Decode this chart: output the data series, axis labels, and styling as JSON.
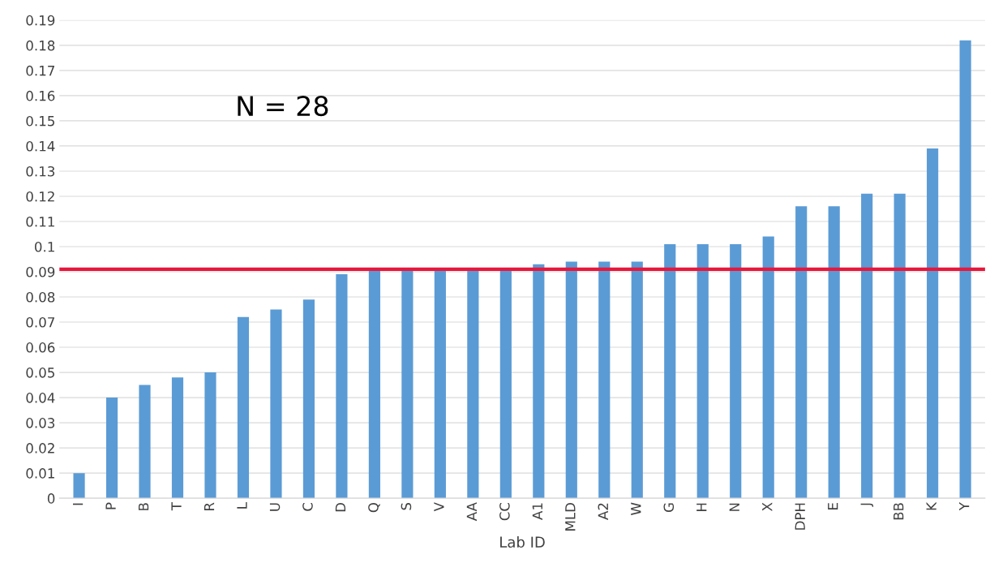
{
  "chart_data": {
    "type": "bar",
    "xlabel": "Lab ID",
    "categories": [
      "I",
      "P",
      "B",
      "T",
      "R",
      "L",
      "U",
      "C",
      "D",
      "Q",
      "S",
      "V",
      "AA",
      "CC",
      "A1",
      "MLD",
      "A2",
      "W",
      "G",
      "H",
      "N",
      "X",
      "DPH",
      "E",
      "J",
      "BB",
      "K",
      "Y"
    ],
    "values": [
      0.01,
      0.04,
      0.045,
      0.048,
      0.05,
      0.072,
      0.075,
      0.079,
      0.089,
      0.091,
      0.091,
      0.091,
      0.091,
      0.091,
      0.093,
      0.094,
      0.094,
      0.094,
      0.101,
      0.101,
      0.101,
      0.104,
      0.116,
      0.116,
      0.121,
      0.121,
      0.139,
      0.182
    ],
    "color": "#5b9bd5",
    "ylim": [
      0,
      0.19
    ],
    "yticks": [
      {
        "value": 0,
        "label": "0"
      },
      0.01,
      0.02,
      0.03,
      0.04,
      0.05,
      0.06,
      0.07,
      0.08,
      0.09,
      {
        "value": 0.1,
        "label": "0.1"
      },
      0.11,
      0.12,
      0.13,
      0.14,
      0.15,
      0.16,
      0.17,
      0.18,
      0.19
    ],
    "grid": "y",
    "ref_lines": [
      {
        "axis": "y",
        "value": 0.091,
        "color": "#e8173c"
      }
    ],
    "annotations": [
      "N = 28"
    ]
  }
}
